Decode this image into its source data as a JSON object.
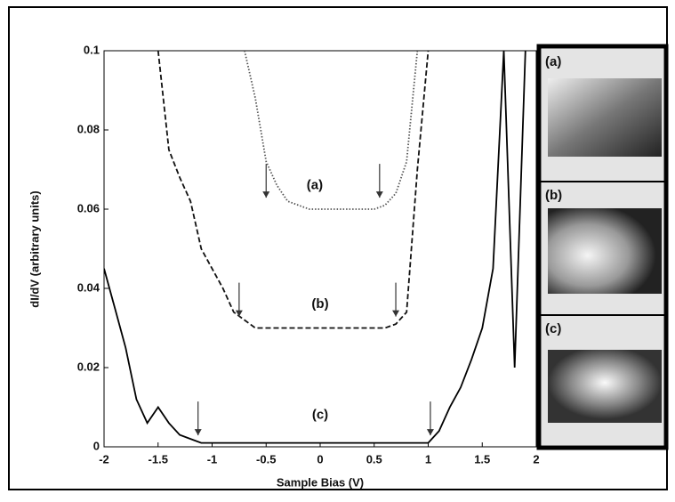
{
  "chart_data": {
    "type": "line",
    "xlabel": "Sample Bias (V)",
    "ylabel": "dI/dV (arbitrary units)",
    "x": [
      -2,
      -1.9,
      -1.8,
      -1.7,
      -1.6,
      -1.5,
      -1.4,
      -1.3,
      -1.2,
      -1.1,
      -1,
      -0.9,
      -0.8,
      -0.7,
      -0.6,
      -0.5,
      -0.4,
      -0.3,
      -0.2,
      -0.1,
      0,
      0.1,
      0.2,
      0.3,
      0.4,
      0.5,
      0.6,
      0.7,
      0.8,
      0.9,
      1,
      1.1,
      1.2,
      1.3,
      1.4,
      1.5,
      1.6,
      1.7,
      1.8,
      1.9,
      2
    ],
    "series": [
      {
        "name": "(a)",
        "color": "#555555",
        "style": "dotted",
        "values": [
          null,
          null,
          null,
          null,
          null,
          null,
          null,
          null,
          null,
          null,
          null,
          null,
          null,
          0.1,
          0.088,
          0.072,
          0.066,
          0.062,
          0.061,
          0.06,
          0.06,
          0.06,
          0.06,
          0.06,
          0.06,
          0.06,
          0.061,
          0.064,
          0.072,
          0.1,
          null,
          null,
          null,
          null,
          null,
          null,
          null,
          null,
          null,
          null,
          null
        ]
      },
      {
        "name": "(b)",
        "color": "#111111",
        "style": "dashed",
        "values": [
          null,
          null,
          null,
          null,
          null,
          0.1,
          0.075,
          0.068,
          0.062,
          0.05,
          0.045,
          0.04,
          0.034,
          0.032,
          0.03,
          0.03,
          0.03,
          0.03,
          0.03,
          0.03,
          0.03,
          0.03,
          0.03,
          0.03,
          0.03,
          0.03,
          0.03,
          0.031,
          0.034,
          0.07,
          0.1,
          null,
          null,
          null,
          null,
          null,
          null,
          null,
          null,
          null,
          null
        ]
      },
      {
        "name": "(c)",
        "color": "#000000",
        "style": "solid",
        "values": [
          0.045,
          0.035,
          0.025,
          0.012,
          0.006,
          0.01,
          0.006,
          0.003,
          0.002,
          0.001,
          0.001,
          0.001,
          0.001,
          0.001,
          0.001,
          0.001,
          0.001,
          0.001,
          0.001,
          0.001,
          0.001,
          0.001,
          0.001,
          0.001,
          0.001,
          0.001,
          0.001,
          0.001,
          0.001,
          0.001,
          0.001,
          0.004,
          0.01,
          0.015,
          0.022,
          0.03,
          0.045,
          0.1,
          0.02,
          0.1,
          null
        ]
      }
    ],
    "annotations": [
      {
        "text": "(a)",
        "x": -0.05,
        "y": 0.066
      },
      {
        "text": "(b)",
        "x": 0,
        "y": 0.036
      },
      {
        "text": "(c)",
        "x": 0,
        "y": 0.008
      }
    ],
    "arrows": [
      {
        "x": -0.5,
        "y": 0.062
      },
      {
        "x": 0.55,
        "y": 0.062
      },
      {
        "x": -0.75,
        "y": 0.032
      },
      {
        "x": 0.7,
        "y": 0.032
      },
      {
        "x": -1.13,
        "y": 0.002
      },
      {
        "x": 1.02,
        "y": 0.002
      }
    ],
    "inset_labels": [
      "(a)",
      "(b)",
      "(c)"
    ],
    "xlim": [
      -2,
      2
    ],
    "xticks": [
      -2,
      -1.5,
      -1,
      -0.5,
      0,
      0.5,
      1,
      1.5,
      2
    ],
    "ylim": [
      0,
      0.1
    ],
    "yticks": [
      0,
      0.02,
      0.04,
      0.06,
      0.08,
      0.1
    ],
    "grid": false
  }
}
